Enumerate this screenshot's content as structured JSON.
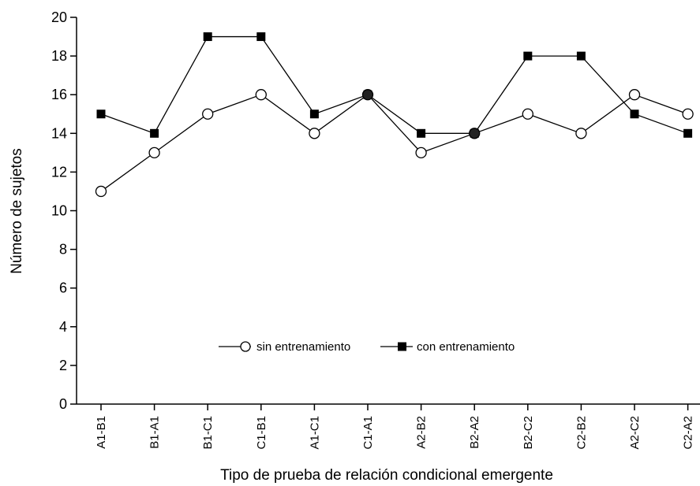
{
  "chart_data": {
    "type": "line",
    "categories": [
      "A1-B1",
      "B1-A1",
      "B1-C1",
      "C1-B1",
      "A1-C1",
      "C1-A1",
      "A2-B2",
      "B2-A2",
      "B2-C2",
      "C2-B2",
      "A2-C2",
      "C2-A2"
    ],
    "series": [
      {
        "name": "sin entrenamiento",
        "marker": "open-circle",
        "color": "#000000",
        "values": [
          11,
          13,
          15,
          16,
          14,
          16,
          13,
          14,
          15,
          14,
          16,
          15
        ]
      },
      {
        "name": "con entrenamiento",
        "marker": "filled-square",
        "color": "#000000",
        "values": [
          15,
          14,
          19,
          19,
          15,
          16,
          14,
          14,
          18,
          18,
          15,
          14
        ]
      }
    ],
    "title": "",
    "xlabel": "Tipo de prueba de relación condicional emergente",
    "ylabel": "Número de sujetos",
    "ylim": [
      0,
      20
    ],
    "yticks": [
      "0",
      "2",
      "4",
      "6",
      "8",
      "10",
      "12",
      "14",
      "16",
      "18",
      "20"
    ],
    "grid": false,
    "legend_position": "lower-center"
  }
}
